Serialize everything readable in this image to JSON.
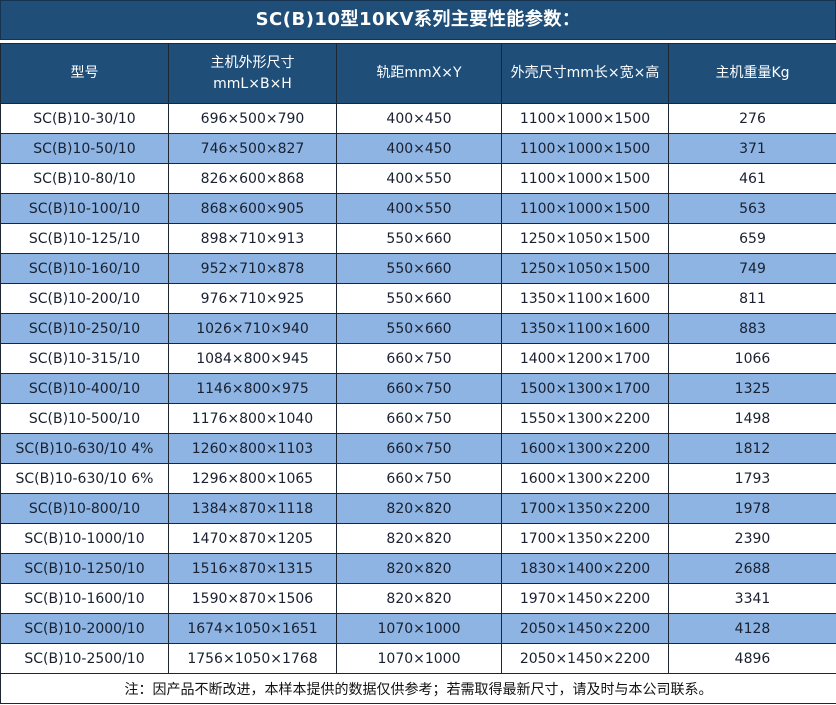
{
  "title": "SC(B)10型10KV系列主要性能参数：",
  "colors": {
    "title_bg": "#1F4E79",
    "header_bg": "#1F4E79",
    "row_alt_bg": "#8DB4E2",
    "row_bg": "#FFFFFF",
    "border": "#1C2733",
    "header_text": "#FFFFFF",
    "cell_text": "#1A2030"
  },
  "table": {
    "column_keys": [
      "model",
      "unit-dimensions",
      "track-gauge",
      "shell-dimensions",
      "weight"
    ],
    "columns": [
      {
        "label": "型号",
        "sublabel": ""
      },
      {
        "label": "主机外形尺寸",
        "sublabel": "mmL×B×H"
      },
      {
        "label": "轨距mmX×Y",
        "sublabel": ""
      },
      {
        "label": "外壳尺寸mm长×宽×高",
        "sublabel": ""
      },
      {
        "label": "主机重量Kg",
        "sublabel": ""
      }
    ],
    "rows": [
      [
        "SC(B)10-30/10",
        "696×500×790",
        "400×450",
        "1100×1000×1500",
        "276"
      ],
      [
        "SC(B)10-50/10",
        "746×500×827",
        "400×450",
        "1100×1000×1500",
        "371"
      ],
      [
        "SC(B)10-80/10",
        "826×600×868",
        "400×550",
        "1100×1000×1500",
        "461"
      ],
      [
        "SC(B)10-100/10",
        "868×600×905",
        "400×550",
        "1100×1000×1500",
        "563"
      ],
      [
        "SC(B)10-125/10",
        "898×710×913",
        "550×660",
        "1250×1050×1500",
        "659"
      ],
      [
        "SC(B)10-160/10",
        "952×710×878",
        "550×660",
        "1250×1050×1500",
        "749"
      ],
      [
        "SC(B)10-200/10",
        "976×710×925",
        "550×660",
        "1350×1100×1600",
        "811"
      ],
      [
        "SC(B)10-250/10",
        "1026×710×940",
        "550×660",
        "1350×1100×1600",
        "883"
      ],
      [
        "SC(B)10-315/10",
        "1084×800×945",
        "660×750",
        "1400×1200×1700",
        "1066"
      ],
      [
        "SC(B)10-400/10",
        "1146×800×975",
        "660×750",
        "1500×1300×1700",
        "1325"
      ],
      [
        "SC(B)10-500/10",
        "1176×800×1040",
        "660×750",
        "1550×1300×2200",
        "1498"
      ],
      [
        "SC(B)10-630/10 4%",
        "1260×800×1103",
        "660×750",
        "1600×1300×2200",
        "1812"
      ],
      [
        "SC(B)10-630/10 6%",
        "1296×800×1065",
        "660×750",
        "1600×1300×2200",
        "1793"
      ],
      [
        "SC(B)10-800/10",
        "1384×870×1118",
        "820×820",
        "1700×1350×2200",
        "1978"
      ],
      [
        "SC(B)10-1000/10",
        "1470×870×1205",
        "820×820",
        "1700×1350×2200",
        "2390"
      ],
      [
        "SC(B)10-1250/10",
        "1516×870×1315",
        "820×820",
        "1830×1400×2200",
        "2688"
      ],
      [
        "SC(B)10-1600/10",
        "1590×870×1506",
        "820×820",
        "1970×1450×2200",
        "3341"
      ],
      [
        "SC(B)10-2000/10",
        "1674×1050×1651",
        "1070×1000",
        "2050×1450×2200",
        "4128"
      ],
      [
        "SC(B)10-2500/10",
        "1756×1050×1768",
        "1070×1000",
        "2050×1450×2200",
        "4896"
      ]
    ]
  },
  "footer_note": "注：因产品不断改进，本样本提供的数据仅供参考；若需取得最新尺寸，请及时与本公司联系。"
}
